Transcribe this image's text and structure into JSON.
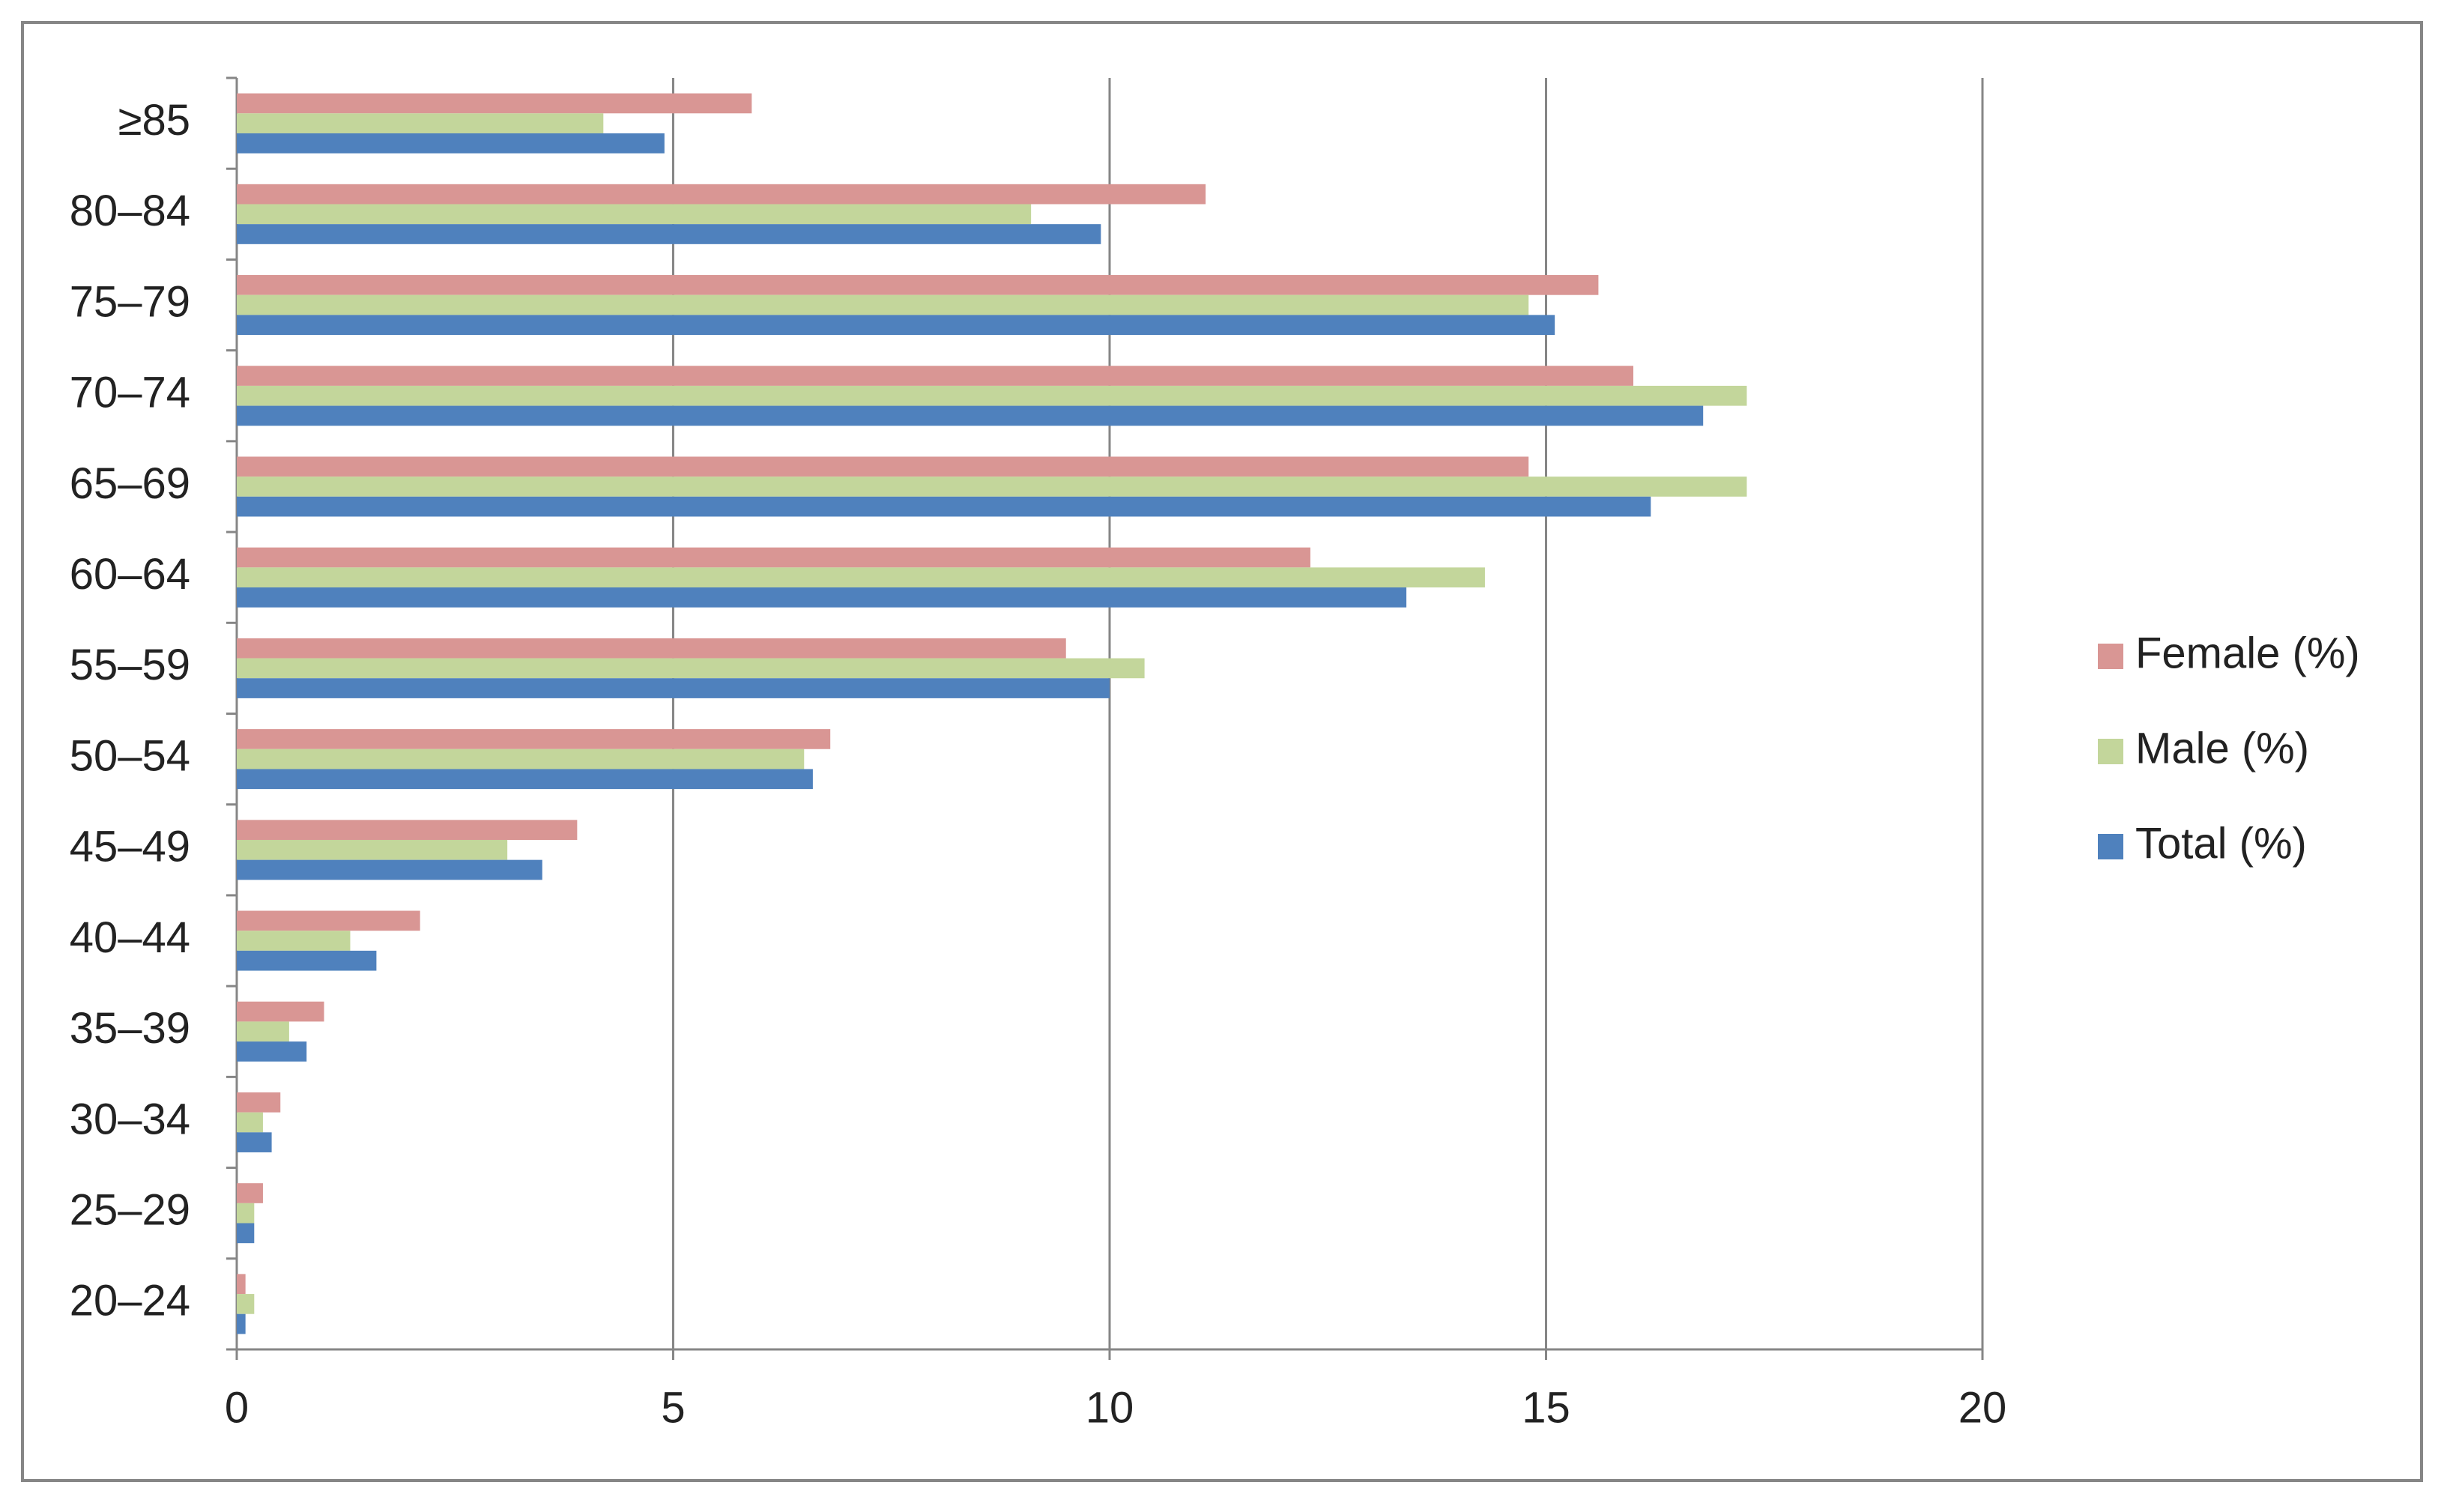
{
  "chart_data": {
    "type": "bar",
    "orientation": "horizontal",
    "categories": [
      "20–24",
      "25–29",
      "30–34",
      "35–39",
      "40–44",
      "45–49",
      "50–54",
      "55–59",
      "60–64",
      "65–69",
      "70–74",
      "75–79",
      "80–84",
      "≥85"
    ],
    "series": [
      {
        "name": "Female (%)",
        "color": "#d99694",
        "values": [
          0.1,
          0.3,
          0.5,
          1.0,
          2.1,
          3.9,
          6.8,
          9.5,
          12.3,
          14.8,
          16.0,
          15.6,
          11.1,
          5.9
        ]
      },
      {
        "name": "Male (%)",
        "color": "#c3d69b",
        "values": [
          0.2,
          0.2,
          0.3,
          0.6,
          1.3,
          3.1,
          6.5,
          10.4,
          14.3,
          17.3,
          17.3,
          14.8,
          9.1,
          4.2
        ]
      },
      {
        "name": "Total (%)",
        "color": "#4f81bd",
        "values": [
          0.1,
          0.2,
          0.4,
          0.8,
          1.6,
          3.5,
          6.6,
          10.0,
          13.4,
          16.2,
          16.8,
          15.1,
          9.9,
          4.9
        ]
      }
    ],
    "xlim": [
      0,
      20
    ],
    "xticks": [
      0,
      5,
      10,
      15,
      20
    ],
    "grid": true,
    "legend": "right"
  }
}
